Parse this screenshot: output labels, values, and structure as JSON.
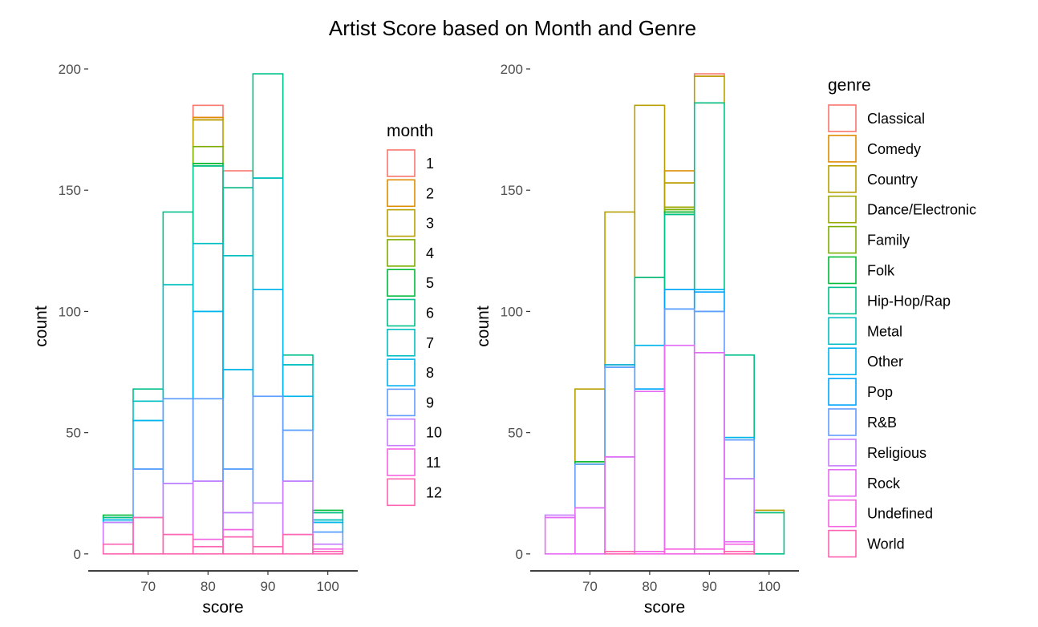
{
  "title": "Artist Score based on Month and Genre",
  "colors": {
    "month": [
      "#F8766D",
      "#DE8C00",
      "#B79F00",
      "#7CAE00",
      "#00BA38",
      "#00C08B",
      "#00BFC4",
      "#00B4F0",
      "#619CFF",
      "#C77CFF",
      "#F564E3",
      "#FF64B0"
    ],
    "genre": [
      "#F8766D",
      "#DE8C00",
      "#B79F00",
      "#9CA700",
      "#7CAE00",
      "#00BA38",
      "#00C08B",
      "#00BFC4",
      "#00B4F0",
      "#00A5FF",
      "#619CFF",
      "#C77CFF",
      "#E76BF3",
      "#F564E3",
      "#FF64B0"
    ]
  },
  "chart_data": [
    {
      "type": "bar",
      "subtype": "stacked-histogram-outline",
      "xlabel": "score",
      "ylabel": "count",
      "ylim": [
        -7,
        200
      ],
      "xlim": [
        60,
        105
      ],
      "x_ticks": [
        70,
        80,
        90,
        100
      ],
      "y_ticks": [
        0,
        50,
        100,
        150,
        200
      ],
      "bin_width": 5,
      "bin_starts": [
        62.5,
        67.5,
        72.5,
        77.5,
        82.5,
        87.5,
        92.5,
        97.5
      ],
      "legend_title": "month",
      "legend_position": "right",
      "series_names": [
        "1",
        "2",
        "3",
        "4",
        "5",
        "6",
        "7",
        "8",
        "9",
        "10",
        "11",
        "12"
      ],
      "cumulative_tops": [
        [
          16,
          68,
          141,
          185,
          158,
          198,
          82,
          18
        ],
        [
          16,
          68,
          141,
          180,
          151,
          198,
          82,
          18
        ],
        [
          16,
          68,
          141,
          179,
          151,
          198,
          82,
          18
        ],
        [
          16,
          68,
          141,
          168,
          151,
          198,
          82,
          18
        ],
        [
          16,
          68,
          141,
          161,
          151,
          198,
          82,
          18
        ],
        [
          15,
          68,
          141,
          160,
          151,
          198,
          82,
          17
        ],
        [
          14,
          63,
          111,
          128,
          123,
          155,
          78,
          14
        ],
        [
          14,
          55,
          64,
          100,
          76,
          109,
          65,
          13
        ],
        [
          13,
          35,
          64,
          64,
          35,
          65,
          51,
          9
        ],
        [
          13,
          15,
          29,
          30,
          17,
          21,
          30,
          4
        ],
        [
          4,
          15,
          8,
          6,
          10,
          3,
          8,
          2
        ],
        [
          4,
          15,
          8,
          3,
          7,
          3,
          8,
          1
        ]
      ]
    },
    {
      "type": "bar",
      "subtype": "stacked-histogram-outline",
      "xlabel": "score",
      "ylabel": "count",
      "ylim": [
        -7,
        200
      ],
      "xlim": [
        60,
        105
      ],
      "x_ticks": [
        70,
        80,
        90,
        100
      ],
      "y_ticks": [
        0,
        50,
        100,
        150,
        200
      ],
      "bin_width": 5,
      "bin_starts": [
        62.5,
        67.5,
        72.5,
        77.5,
        82.5,
        87.5,
        92.5,
        97.5
      ],
      "legend_title": "genre",
      "legend_position": "right",
      "series_names": [
        "Classical",
        "Comedy",
        "Country",
        "Dance/Electronic",
        "Family",
        "Folk",
        "Hip-Hop/Rap",
        "Metal",
        "Other",
        "Pop",
        "R&B",
        "Religious",
        "Rock",
        "Undefined",
        "World"
      ],
      "cumulative_tops": [
        [
          16,
          68,
          141,
          185,
          158,
          198,
          82,
          18
        ],
        [
          16,
          68,
          141,
          185,
          158,
          197,
          82,
          18
        ],
        [
          16,
          68,
          141,
          185,
          153,
          197,
          82,
          18
        ],
        [
          16,
          38,
          78,
          114,
          143,
          186,
          82,
          17
        ],
        [
          16,
          38,
          78,
          114,
          142,
          186,
          82,
          17
        ],
        [
          16,
          38,
          78,
          114,
          141,
          186,
          82,
          17
        ],
        [
          16,
          37,
          78,
          114,
          140,
          186,
          82,
          17
        ],
        [
          16,
          37,
          78,
          86,
          109,
          109,
          48,
          0
        ],
        [
          16,
          37,
          78,
          86,
          109,
          109,
          48,
          0
        ],
        [
          16,
          37,
          77,
          68,
          109,
          108,
          47,
          0
        ],
        [
          16,
          37,
          77,
          67,
          101,
          100,
          47,
          0
        ],
        [
          16,
          19,
          40,
          67,
          86,
          83,
          31,
          0
        ],
        [
          15,
          19,
          40,
          67,
          86,
          83,
          5,
          0
        ],
        [
          0,
          0,
          1,
          1,
          2,
          2,
          4,
          0
        ],
        [
          0,
          0,
          1,
          0,
          0,
          0,
          1,
          0
        ]
      ]
    }
  ]
}
